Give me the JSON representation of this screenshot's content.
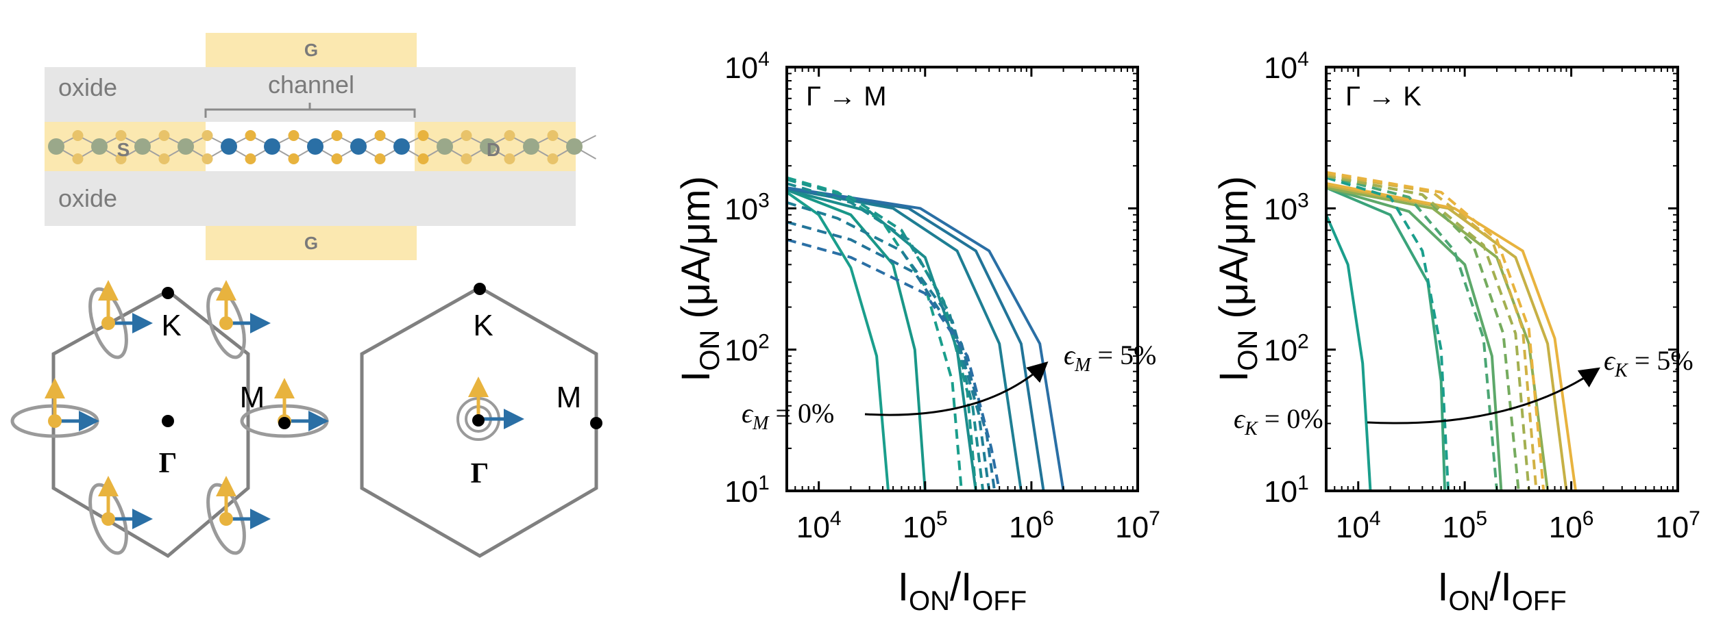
{
  "device": {
    "gate_top": "G",
    "gate_bottom": "G",
    "oxide_top": "oxide",
    "oxide_bottom": "oxide",
    "channel": "channel",
    "source": "S",
    "drain": "D"
  },
  "bz_left": {
    "K": "K",
    "M": "M",
    "Gamma": "Γ"
  },
  "bz_right": {
    "K": "K",
    "M": "M",
    "Gamma": "Γ"
  },
  "colors": {
    "gold": "#E8B33E",
    "blue": "#2A6FA5",
    "teal": "#1A9E8C",
    "gate_fill": "#FBE8B0",
    "oxide_fill": "#E6E6E6",
    "gray": "#8A8A8A"
  },
  "axes_text": {
    "ylabel_main": "I",
    "ylabel_sub": "ON",
    "ylabel_units": "(μA/μm)",
    "xlabel_main1": "I",
    "xlabel_sub1": "ON",
    "xlabel_slash": "/I",
    "xlabel_sub2": "OFF"
  },
  "chart_data": [
    {
      "type": "line",
      "title": "Γ → M",
      "xscale": "log",
      "yscale": "log",
      "xlim": [
        5000,
        10000000
      ],
      "ylim": [
        10,
        10000
      ],
      "xticks": [
        10000,
        100000,
        1000000,
        10000000
      ],
      "yticks": [
        10,
        100,
        1000,
        10000
      ],
      "xtick_labels": [
        [
          "10",
          "4"
        ],
        [
          "10",
          "5"
        ],
        [
          "10",
          "6"
        ],
        [
          "10",
          "7"
        ]
      ],
      "ytick_labels": [
        [
          "10",
          "1"
        ],
        [
          "10",
          "2"
        ],
        [
          "10",
          "3"
        ],
        [
          "10",
          "4"
        ]
      ],
      "annotation_low": "ϵ_M = 0%",
      "annotation_high": "ϵ_M = 5%",
      "series": [
        {
          "style": "solid",
          "color": "#1A9E8C",
          "points": [
            [
              5000,
              1300
            ],
            [
              10000,
              900
            ],
            [
              20000,
              380
            ],
            [
              35000,
              90
            ],
            [
              45000,
              10
            ]
          ]
        },
        {
          "style": "solid",
          "color": "#199788",
          "points": [
            [
              5000,
              1350
            ],
            [
              20000,
              900
            ],
            [
              50000,
              400
            ],
            [
              80000,
              100
            ],
            [
              100000,
              10
            ]
          ]
        },
        {
          "style": "solid",
          "color": "#1B8C8C",
          "points": [
            [
              5000,
              1350
            ],
            [
              30000,
              950
            ],
            [
              100000,
              450
            ],
            [
              200000,
              100
            ],
            [
              300000,
              10
            ]
          ]
        },
        {
          "style": "solid",
          "color": "#1E7E93",
          "points": [
            [
              5000,
              1380
            ],
            [
              50000,
              1000
            ],
            [
              200000,
              500
            ],
            [
              500000,
              110
            ],
            [
              800000,
              10
            ]
          ]
        },
        {
          "style": "solid",
          "color": "#217498",
          "points": [
            [
              5000,
              1380
            ],
            [
              70000,
              1000
            ],
            [
              300000,
              500
            ],
            [
              800000,
              110
            ],
            [
              1300000,
              10
            ]
          ]
        },
        {
          "style": "solid",
          "color": "#2A6FA5",
          "points": [
            [
              5000,
              1400
            ],
            [
              90000,
              1000
            ],
            [
              400000,
              500
            ],
            [
              1200000,
              110
            ],
            [
              2000000,
              10
            ]
          ]
        },
        {
          "style": "dashed",
          "color": "#1A9E8C",
          "points": [
            [
              5000,
              1650
            ],
            [
              15000,
              1300
            ],
            [
              40000,
              800
            ],
            [
              100000,
              280
            ],
            [
              180000,
              60
            ],
            [
              220000,
              10
            ]
          ]
        },
        {
          "style": "dashed",
          "color": "#1B968C",
          "points": [
            [
              5000,
              1600
            ],
            [
              20000,
              1200
            ],
            [
              60000,
              700
            ],
            [
              150000,
              220
            ],
            [
              250000,
              50
            ],
            [
              300000,
              10
            ]
          ]
        },
        {
          "style": "dashed",
          "color": "#1D8A90",
          "points": [
            [
              5000,
              1500
            ],
            [
              20000,
              1100
            ],
            [
              70000,
              600
            ],
            [
              170000,
              180
            ],
            [
              280000,
              40
            ],
            [
              350000,
              10
            ]
          ]
        },
        {
          "style": "dashed",
          "color": "#1F7E95",
          "points": [
            [
              5000,
              1100
            ],
            [
              15000,
              850
            ],
            [
              60000,
              500
            ],
            [
              180000,
              160
            ],
            [
              320000,
              35
            ],
            [
              400000,
              10
            ]
          ]
        },
        {
          "style": "dashed",
          "color": "#23759A",
          "points": [
            [
              5000,
              800
            ],
            [
              20000,
              600
            ],
            [
              80000,
              350
            ],
            [
              220000,
              110
            ],
            [
              380000,
              25
            ],
            [
              450000,
              10
            ]
          ]
        },
        {
          "style": "dashed",
          "color": "#2A6FA5",
          "points": [
            [
              5000,
              600
            ],
            [
              20000,
              450
            ],
            [
              100000,
              250
            ],
            [
              250000,
              90
            ],
            [
              420000,
              20
            ],
            [
              500000,
              10
            ]
          ]
        }
      ]
    },
    {
      "type": "line",
      "title": "Γ → K",
      "xscale": "log",
      "yscale": "log",
      "xlim": [
        5000,
        10000000
      ],
      "ylim": [
        10,
        10000
      ],
      "xticks": [
        10000,
        100000,
        1000000,
        10000000
      ],
      "yticks": [
        10,
        100,
        1000,
        10000
      ],
      "xtick_labels": [
        [
          "10",
          "4"
        ],
        [
          "10",
          "5"
        ],
        [
          "10",
          "6"
        ],
        [
          "10",
          "7"
        ]
      ],
      "ytick_labels": [
        [
          "10",
          "1"
        ],
        [
          "10",
          "2"
        ],
        [
          "10",
          "3"
        ],
        [
          "10",
          "4"
        ]
      ],
      "annotation_low": "ϵ_K = 0%",
      "annotation_high": "ϵ_K = 5%",
      "series": [
        {
          "style": "solid",
          "color": "#1A9E8C",
          "points": [
            [
              5000,
              900
            ],
            [
              8000,
              400
            ],
            [
              11000,
              80
            ],
            [
              13000,
              10
            ]
          ]
        },
        {
          "style": "solid",
          "color": "#3AA37A",
          "points": [
            [
              5000,
              1400
            ],
            [
              20000,
              900
            ],
            [
              45000,
              300
            ],
            [
              60000,
              60
            ],
            [
              65000,
              10
            ]
          ]
        },
        {
          "style": "solid",
          "color": "#5DA86A",
          "points": [
            [
              5000,
              1400
            ],
            [
              30000,
              950
            ],
            [
              100000,
              400
            ],
            [
              180000,
              90
            ],
            [
              220000,
              10
            ]
          ]
        },
        {
          "style": "solid",
          "color": "#8CAE55",
          "points": [
            [
              5000,
              1400
            ],
            [
              50000,
              1000
            ],
            [
              200000,
              450
            ],
            [
              400000,
              110
            ],
            [
              600000,
              10
            ]
          ]
        },
        {
          "style": "solid",
          "color": "#C6B045",
          "points": [
            [
              5000,
              1450
            ],
            [
              70000,
              1000
            ],
            [
              300000,
              450
            ],
            [
              600000,
              110
            ],
            [
              900000,
              10
            ]
          ]
        },
        {
          "style": "solid",
          "color": "#E8B33E",
          "points": [
            [
              5000,
              1500
            ],
            [
              80000,
              1000
            ],
            [
              350000,
              500
            ],
            [
              700000,
              120
            ],
            [
              1100000,
              10
            ]
          ]
        },
        {
          "style": "dashed",
          "color": "#1A9E8C",
          "points": [
            [
              5000,
              1650
            ],
            [
              20000,
              1200
            ],
            [
              40000,
              500
            ],
            [
              60000,
              100
            ],
            [
              70000,
              10
            ]
          ]
        },
        {
          "style": "dashed",
          "color": "#4BA674",
          "points": [
            [
              5000,
              1700
            ],
            [
              30000,
              1200
            ],
            [
              80000,
              500
            ],
            [
              150000,
              120
            ],
            [
              200000,
              10
            ]
          ]
        },
        {
          "style": "dashed",
          "color": "#75AB5E",
          "points": [
            [
              5000,
              1700
            ],
            [
              40000,
              1250
            ],
            [
              120000,
              550
            ],
            [
              230000,
              130
            ],
            [
              320000,
              10
            ]
          ]
        },
        {
          "style": "dashed",
          "color": "#A3AF50",
          "points": [
            [
              5000,
              1700
            ],
            [
              40000,
              1250
            ],
            [
              150000,
              550
            ],
            [
              300000,
              130
            ],
            [
              400000,
              10
            ]
          ]
        },
        {
          "style": "dashed",
          "color": "#D1B144",
          "points": [
            [
              5000,
              1750
            ],
            [
              50000,
              1300
            ],
            [
              180000,
              600
            ],
            [
              350000,
              140
            ],
            [
              470000,
              10
            ]
          ]
        },
        {
          "style": "dashed",
          "color": "#E8B33E",
          "points": [
            [
              5000,
              1800
            ],
            [
              60000,
              1300
            ],
            [
              200000,
              600
            ],
            [
              400000,
              140
            ],
            [
              550000,
              10
            ]
          ]
        }
      ]
    }
  ]
}
